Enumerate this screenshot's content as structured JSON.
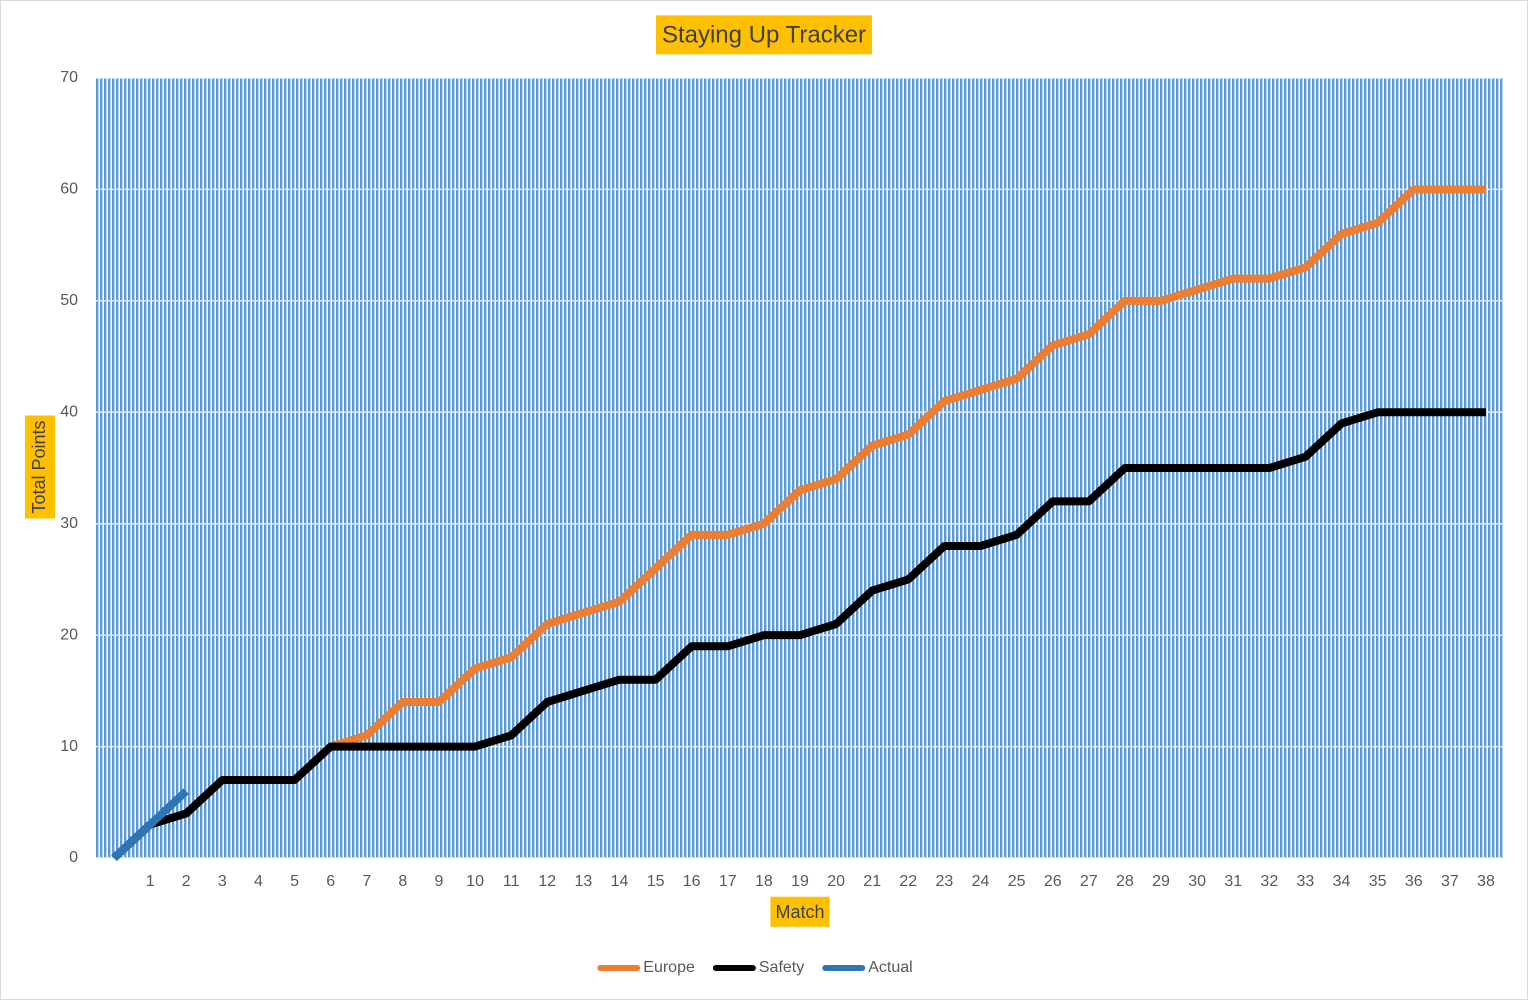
{
  "chart_data": {
    "type": "line",
    "title": "Staying Up Tracker",
    "x_label": "Match",
    "y_label": "Total Points",
    "categories": [
      null,
      "1",
      "2",
      "3",
      "4",
      "5",
      "6",
      "7",
      "8",
      "9",
      "10",
      "11",
      "12",
      "13",
      "14",
      "15",
      "16",
      "17",
      "18",
      "19",
      "20",
      "21",
      "22",
      "23",
      "24",
      "25",
      "26",
      "27",
      "28",
      "29",
      "30",
      "31",
      "32",
      "33",
      "34",
      "35",
      "36",
      "37",
      "38"
    ],
    "series": [
      {
        "name": "Europe",
        "color": "#ed7d31",
        "values": [
          0,
          3,
          4,
          7,
          7,
          7,
          10,
          11,
          14,
          14,
          17,
          18,
          21,
          22,
          23,
          26,
          29,
          29,
          30,
          33,
          34,
          37,
          38,
          41,
          42,
          43,
          46,
          47,
          50,
          50,
          51,
          52,
          52,
          53,
          56,
          57,
          60,
          60,
          60
        ]
      },
      {
        "name": "Safety",
        "color": "#000000",
        "values": [
          0,
          3,
          4,
          7,
          7,
          7,
          10,
          10,
          10,
          10,
          10,
          11,
          14,
          15,
          16,
          16,
          19,
          19,
          20,
          20,
          21,
          24,
          25,
          28,
          28,
          29,
          32,
          32,
          35,
          35,
          35,
          35,
          35,
          36,
          39,
          40,
          40,
          40,
          40
        ]
      },
      {
        "name": "Actual",
        "color": "#2e75b6",
        "values": [
          0,
          3,
          6,
          null,
          null,
          null,
          null,
          null,
          null,
          null,
          null,
          null,
          null,
          null,
          null,
          null,
          null,
          null,
          null,
          null,
          null,
          null,
          null,
          null,
          null,
          null,
          null,
          null,
          null,
          null,
          null,
          null,
          null,
          null,
          null,
          null,
          null,
          null,
          null
        ]
      }
    ],
    "ylim": [
      0,
      70
    ],
    "yticks": [
      0,
      10,
      20,
      30,
      40,
      50,
      60,
      70
    ],
    "grid": true,
    "legend": "bottom"
  }
}
